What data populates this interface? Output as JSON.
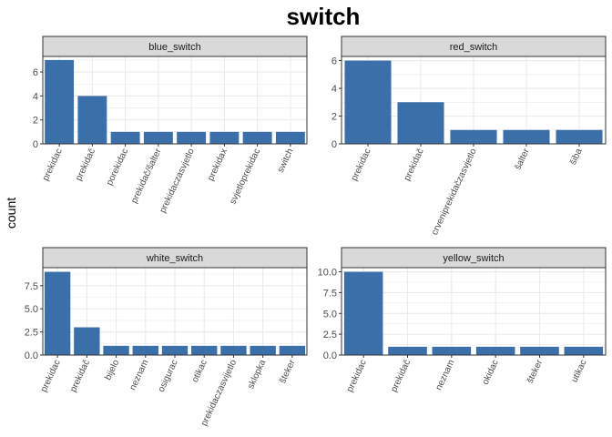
{
  "title": "switch",
  "ylabel": "count",
  "colors": {
    "bar": "#3A6FA9",
    "strip": "#D9D9D9",
    "grid": "#EBEBEB"
  },
  "chart_data": [
    {
      "type": "bar",
      "panel": "blue_switch",
      "categories": [
        "prekidac",
        "prekidač",
        "porekidac",
        "prekidač/šalter",
        "prekidaczasvjetlo",
        "prekidax",
        "svjetloprekidac",
        "switch"
      ],
      "values": [
        7,
        4,
        1,
        1,
        1,
        1,
        1,
        1
      ],
      "ylim": [
        0,
        7.3
      ],
      "yticks": [
        0,
        2,
        4,
        6
      ],
      "ytick_labels": [
        "0",
        "2",
        "4",
        "6"
      ]
    },
    {
      "type": "bar",
      "panel": "red_switch",
      "categories": [
        "prekidac",
        "prekidač",
        "crveniprekidačzasvjetlo",
        "šalter",
        "šiba"
      ],
      "values": [
        6,
        3,
        1,
        1,
        1
      ],
      "ylim": [
        0,
        6.3
      ],
      "yticks": [
        0,
        2,
        4,
        6
      ],
      "ytick_labels": [
        "0",
        "2",
        "4",
        "6"
      ]
    },
    {
      "type": "bar",
      "panel": "white_switch",
      "categories": [
        "prekidac",
        "prekidač",
        "bijelo",
        "neznam",
        "osigurac",
        "otikac",
        "prekidaczasvijetlo",
        "sklopka",
        "šteker"
      ],
      "values": [
        9,
        3,
        1,
        1,
        1,
        1,
        1,
        1,
        1
      ],
      "ylim": [
        0,
        9.45
      ],
      "yticks": [
        0,
        2.5,
        5,
        7.5
      ],
      "ytick_labels": [
        "0.0",
        "2.5",
        "5.0",
        "7.5"
      ]
    },
    {
      "type": "bar",
      "panel": "yellow_switch",
      "categories": [
        "prekidac",
        "prekidač",
        "neznam",
        "okidac",
        "šteker",
        "utikac"
      ],
      "values": [
        10,
        1,
        1,
        1,
        1,
        1
      ],
      "ylim": [
        0,
        10.5
      ],
      "yticks": [
        0,
        2.5,
        5,
        7.5,
        10
      ],
      "ytick_labels": [
        "0.0",
        "2.5",
        "5.0",
        "7.5",
        "10.0"
      ]
    }
  ]
}
